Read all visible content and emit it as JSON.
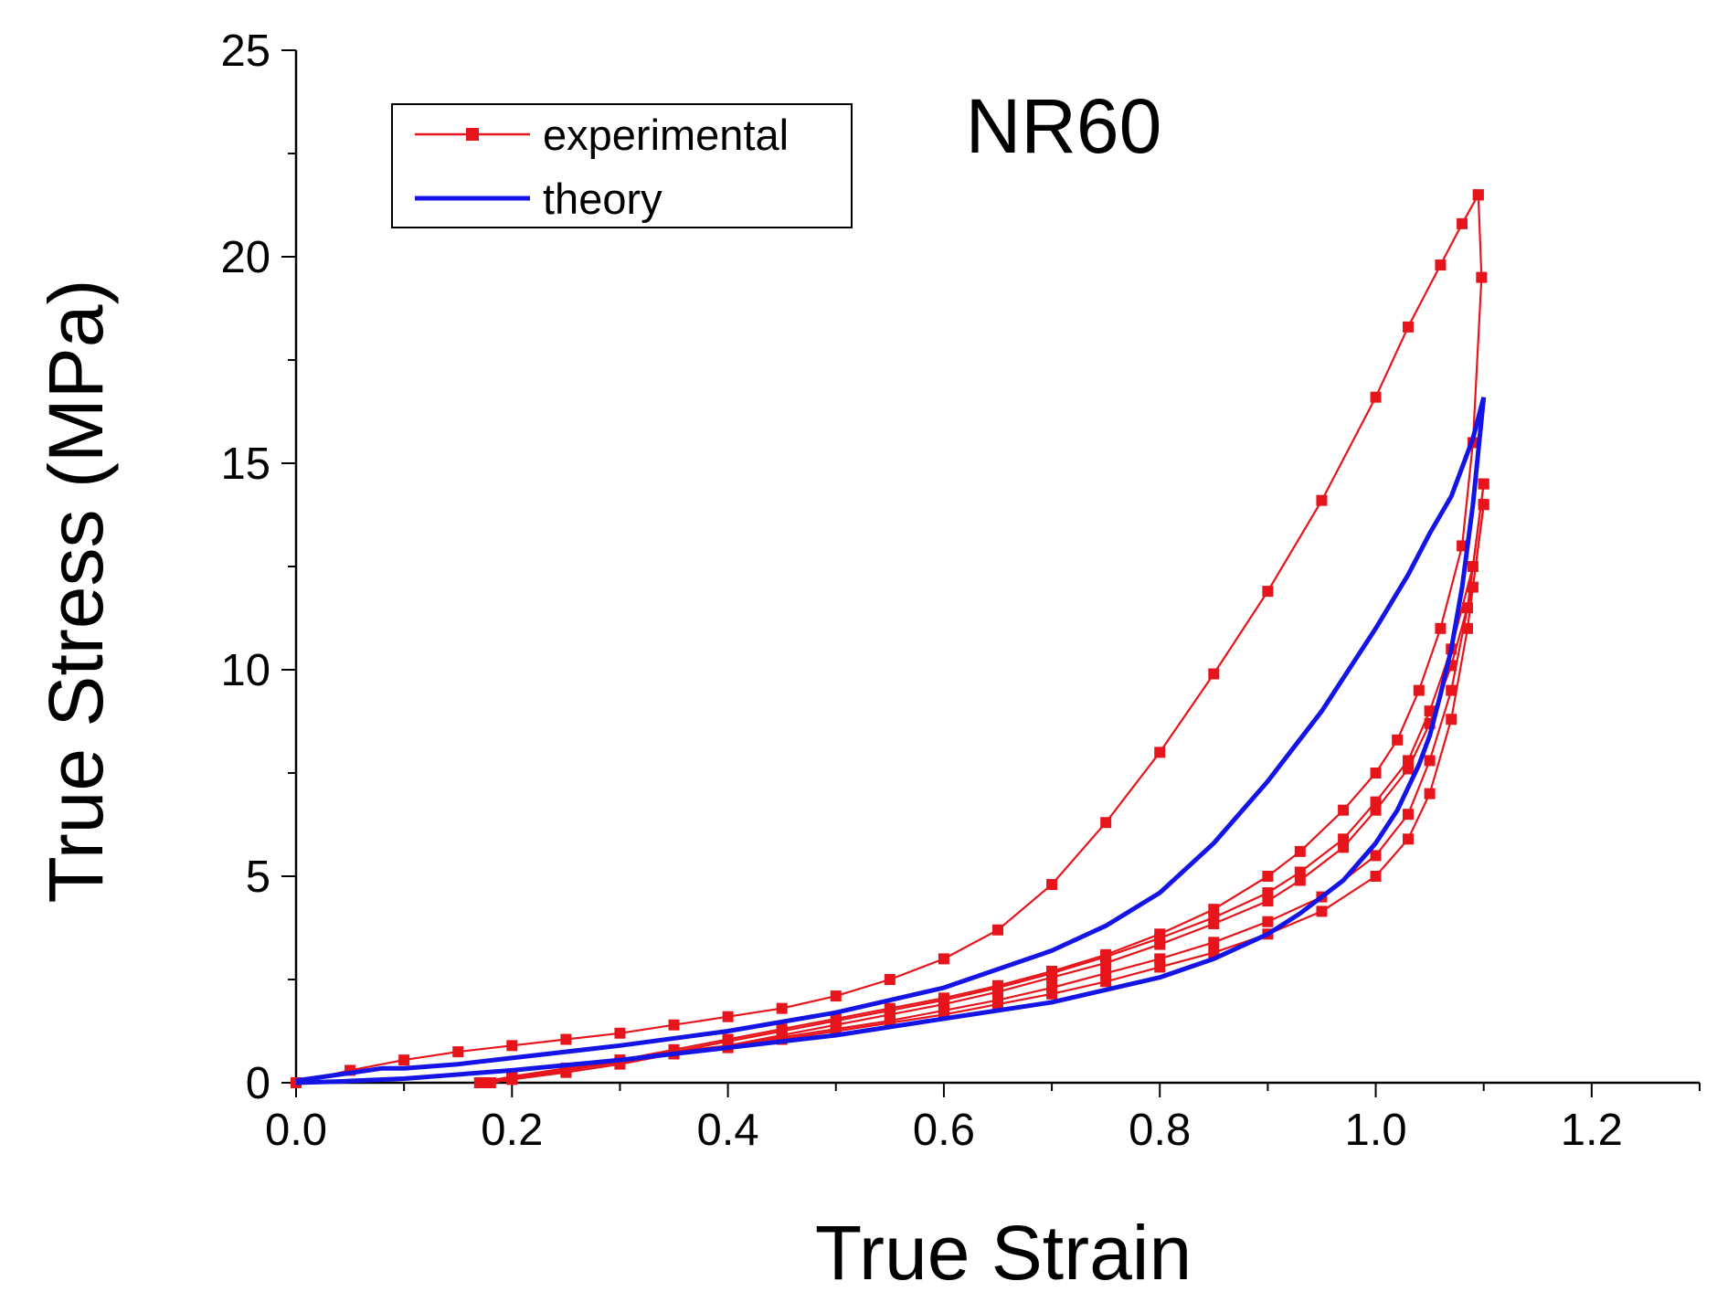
{
  "chart_data": {
    "type": "line",
    "title": "NR60",
    "xlabel": "True Strain",
    "ylabel": "True Stress (MPa)",
    "xlim": [
      0,
      1.3
    ],
    "ylim": [
      0,
      25
    ],
    "xticks": [
      0.0,
      0.2,
      0.4,
      0.6,
      0.8,
      1.0,
      1.2
    ],
    "xtick_labels": [
      "0.0",
      "0.2",
      "0.4",
      "0.6",
      "0.8",
      "1.0",
      "1.2"
    ],
    "yticks": [
      0,
      5,
      10,
      15,
      20,
      25
    ],
    "ytick_labels": [
      "0",
      "5",
      "10",
      "15",
      "20",
      "25"
    ],
    "legend": {
      "position": "top-left",
      "entries": [
        {
          "label": "experimental",
          "color": "#e8141b",
          "marker": "square"
        },
        {
          "label": "theory",
          "color": "#1414e6",
          "marker": "none"
        }
      ]
    },
    "series": [
      {
        "name": "experimental",
        "color": "#e8141b",
        "segments": [
          {
            "x": [
              0.0,
              0.05,
              0.1,
              0.15,
              0.2,
              0.25,
              0.3,
              0.35,
              0.4,
              0.45,
              0.5,
              0.55,
              0.6,
              0.65,
              0.7,
              0.75,
              0.8,
              0.85,
              0.9,
              0.95,
              1.0,
              1.03,
              1.06,
              1.08,
              1.095
            ],
            "y": [
              0.0,
              0.3,
              0.55,
              0.75,
              0.9,
              1.05,
              1.2,
              1.4,
              1.6,
              1.8,
              2.1,
              2.5,
              3.0,
              3.7,
              4.8,
              6.3,
              8.0,
              9.9,
              11.9,
              14.1,
              16.6,
              18.3,
              19.8,
              20.8,
              21.5
            ]
          },
          {
            "x": [
              1.095,
              1.098,
              1.09,
              1.08,
              1.06,
              1.04,
              1.02,
              1.0,
              0.97,
              0.93,
              0.9,
              0.85,
              0.8,
              0.75,
              0.7,
              0.65,
              0.6,
              0.55,
              0.5,
              0.45,
              0.4,
              0.35,
              0.3,
              0.25,
              0.2,
              0.17
            ],
            "y": [
              21.5,
              19.5,
              15.5,
              13.0,
              11.0,
              9.5,
              8.3,
              7.5,
              6.6,
              5.6,
              5.0,
              4.2,
              3.6,
              3.1,
              2.7,
              2.35,
              2.05,
              1.8,
              1.55,
              1.3,
              1.05,
              0.8,
              0.55,
              0.35,
              0.15,
              0.0
            ]
          },
          {
            "x": [
              0.17,
              0.2,
              0.25,
              0.3,
              0.35,
              0.4,
              0.45,
              0.5,
              0.55,
              0.6,
              0.65,
              0.7,
              0.75,
              0.8,
              0.85,
              0.9,
              0.95,
              1.0,
              1.03,
              1.05,
              1.07,
              1.085,
              1.1
            ],
            "y": [
              0.0,
              0.15,
              0.35,
              0.55,
              0.75,
              0.9,
              1.1,
              1.3,
              1.5,
              1.75,
              2.0,
              2.3,
              2.65,
              3.0,
              3.4,
              3.9,
              4.5,
              5.5,
              6.5,
              7.8,
              9.5,
              11.5,
              14.5
            ]
          },
          {
            "x": [
              1.1,
              1.09,
              1.07,
              1.05,
              1.03,
              1.0,
              0.97,
              0.93,
              0.9,
              0.85,
              0.8,
              0.75,
              0.7,
              0.65,
              0.6,
              0.55,
              0.5,
              0.45,
              0.4,
              0.35,
              0.3,
              0.25,
              0.2,
              0.18
            ],
            "y": [
              14.5,
              12.5,
              10.5,
              9.0,
              7.8,
              6.8,
              5.9,
              5.1,
              4.6,
              4.0,
              3.5,
              3.05,
              2.65,
              2.3,
              2.0,
              1.75,
              1.5,
              1.25,
              1.0,
              0.75,
              0.5,
              0.3,
              0.1,
              0.0
            ]
          },
          {
            "x": [
              0.18,
              0.2,
              0.25,
              0.3,
              0.35,
              0.4,
              0.45,
              0.5,
              0.55,
              0.6,
              0.65,
              0.7,
              0.75,
              0.8,
              0.85,
              0.9,
              0.95,
              1.0,
              1.03,
              1.05,
              1.07,
              1.085,
              1.1
            ],
            "y": [
              0.0,
              0.1,
              0.3,
              0.5,
              0.7,
              0.85,
              1.05,
              1.25,
              1.45,
              1.65,
              1.9,
              2.15,
              2.45,
              2.8,
              3.15,
              3.6,
              4.15,
              5.0,
              5.9,
              7.0,
              8.8,
              11.0,
              14.0
            ]
          },
          {
            "x": [
              1.1,
              1.09,
              1.07,
              1.05,
              1.03,
              1.0,
              0.97,
              0.93,
              0.9,
              0.85,
              0.8,
              0.75,
              0.7,
              0.65,
              0.6,
              0.55,
              0.5,
              0.45,
              0.4,
              0.35,
              0.3,
              0.25,
              0.2,
              0.18
            ],
            "y": [
              14.0,
              12.0,
              10.1,
              8.7,
              7.6,
              6.6,
              5.7,
              4.9,
              4.4,
              3.85,
              3.35,
              2.9,
              2.55,
              2.2,
              1.9,
              1.65,
              1.4,
              1.15,
              0.9,
              0.7,
              0.45,
              0.25,
              0.08,
              0.0
            ]
          }
        ]
      },
      {
        "name": "theory",
        "color": "#1414e6",
        "segments": [
          {
            "x": [
              0.0,
              0.04,
              0.08,
              0.1,
              0.15,
              0.2,
              0.3,
              0.4,
              0.5,
              0.6,
              0.7,
              0.75,
              0.8,
              0.85,
              0.9,
              0.95,
              1.0,
              1.03,
              1.05,
              1.07,
              1.08,
              1.09,
              1.1
            ],
            "y": [
              0.05,
              0.2,
              0.35,
              0.35,
              0.45,
              0.6,
              0.9,
              1.25,
              1.7,
              2.3,
              3.2,
              3.8,
              4.6,
              5.8,
              7.3,
              9.0,
              11.0,
              12.3,
              13.3,
              14.2,
              14.9,
              15.6,
              16.6
            ]
          },
          {
            "x": [
              1.1,
              1.097,
              1.09,
              1.08,
              1.07,
              1.06,
              1.05,
              1.04,
              1.02,
              1.0,
              0.97,
              0.93,
              0.9,
              0.85,
              0.8,
              0.75,
              0.7,
              0.6,
              0.5,
              0.4,
              0.3,
              0.2,
              0.1,
              0.04,
              0.0
            ],
            "y": [
              16.6,
              15.8,
              14.0,
              12.0,
              10.5,
              9.4,
              8.4,
              7.7,
              6.6,
              5.8,
              4.9,
              4.1,
              3.6,
              3.0,
              2.55,
              2.25,
              1.95,
              1.55,
              1.15,
              0.85,
              0.55,
              0.3,
              0.1,
              0.03,
              0.0
            ]
          }
        ]
      }
    ]
  }
}
